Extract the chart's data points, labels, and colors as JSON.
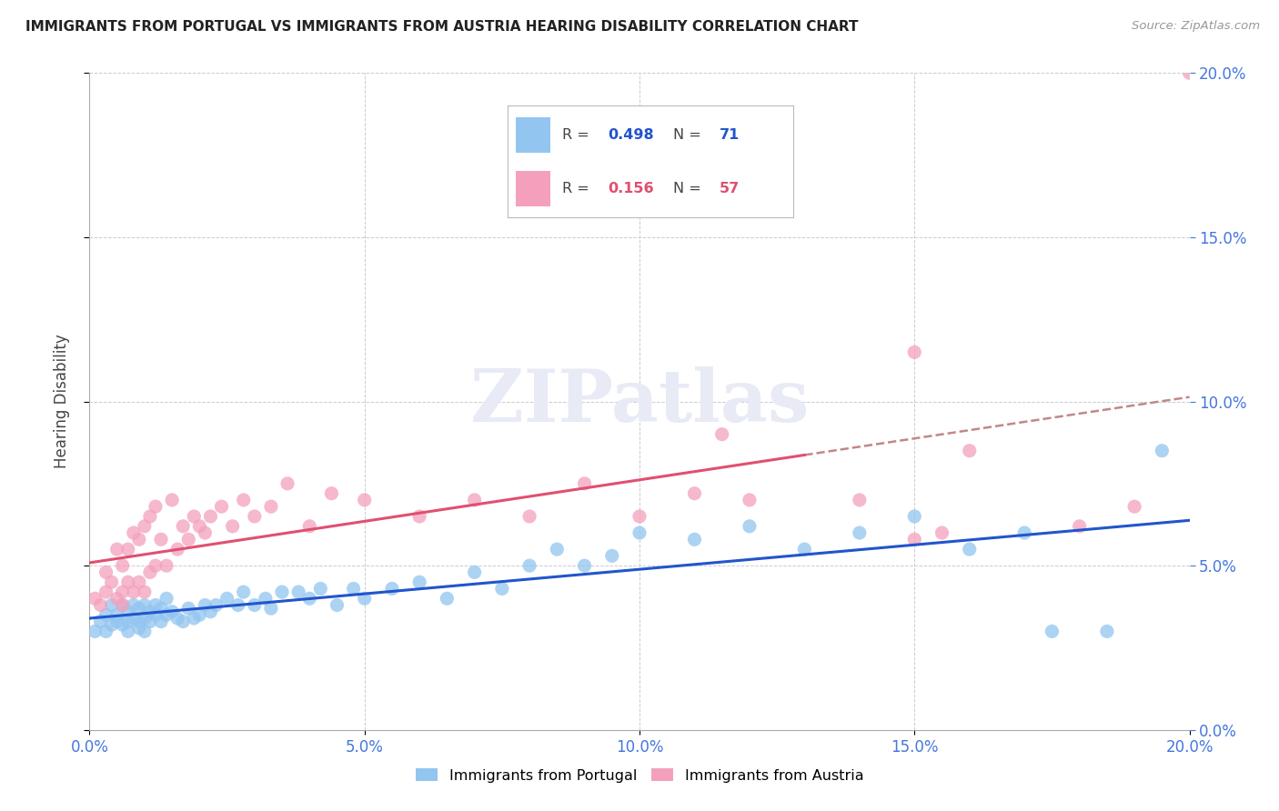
{
  "title": "IMMIGRANTS FROM PORTUGAL VS IMMIGRANTS FROM AUSTRIA HEARING DISABILITY CORRELATION CHART",
  "source": "Source: ZipAtlas.com",
  "ylabel": "Hearing Disability",
  "xlim": [
    0.0,
    0.2
  ],
  "ylim": [
    0.0,
    0.2
  ],
  "legend1_label": "Immigrants from Portugal",
  "legend2_label": "Immigrants from Austria",
  "R1": "0.498",
  "N1": "71",
  "R2": "0.156",
  "N2": "57",
  "color_portugal": "#92C5F0",
  "color_austria": "#F4A0BC",
  "trendline_portugal": "#2255CC",
  "trendline_austria": "#E05070",
  "trendline_dashed": "#C08888",
  "axis_blue": "#4477DD",
  "watermark_color": "#E8EAF5",
  "background_color": "#FFFFFF",
  "grid_color": "#CCCCCC",
  "portugal_x": [
    0.001,
    0.002,
    0.003,
    0.003,
    0.004,
    0.004,
    0.005,
    0.005,
    0.006,
    0.006,
    0.007,
    0.007,
    0.007,
    0.008,
    0.008,
    0.009,
    0.009,
    0.009,
    0.01,
    0.01,
    0.01,
    0.011,
    0.011,
    0.012,
    0.012,
    0.013,
    0.013,
    0.014,
    0.014,
    0.015,
    0.016,
    0.017,
    0.018,
    0.019,
    0.02,
    0.021,
    0.022,
    0.023,
    0.025,
    0.027,
    0.028,
    0.03,
    0.032,
    0.033,
    0.035,
    0.038,
    0.04,
    0.042,
    0.045,
    0.048,
    0.05,
    0.055,
    0.06,
    0.065,
    0.07,
    0.075,
    0.08,
    0.085,
    0.09,
    0.095,
    0.1,
    0.11,
    0.12,
    0.13,
    0.14,
    0.15,
    0.16,
    0.17,
    0.175,
    0.185,
    0.195
  ],
  "portugal_y": [
    0.03,
    0.033,
    0.035,
    0.03,
    0.038,
    0.032,
    0.035,
    0.033,
    0.038,
    0.032,
    0.036,
    0.033,
    0.03,
    0.038,
    0.034,
    0.037,
    0.033,
    0.031,
    0.038,
    0.034,
    0.03,
    0.036,
    0.033,
    0.038,
    0.035,
    0.037,
    0.033,
    0.04,
    0.035,
    0.036,
    0.034,
    0.033,
    0.037,
    0.034,
    0.035,
    0.038,
    0.036,
    0.038,
    0.04,
    0.038,
    0.042,
    0.038,
    0.04,
    0.037,
    0.042,
    0.042,
    0.04,
    0.043,
    0.038,
    0.043,
    0.04,
    0.043,
    0.045,
    0.04,
    0.048,
    0.043,
    0.05,
    0.055,
    0.05,
    0.053,
    0.06,
    0.058,
    0.062,
    0.055,
    0.06,
    0.065,
    0.055,
    0.06,
    0.03,
    0.03,
    0.085
  ],
  "austria_x": [
    0.001,
    0.002,
    0.003,
    0.003,
    0.004,
    0.005,
    0.005,
    0.006,
    0.006,
    0.006,
    0.007,
    0.007,
    0.008,
    0.008,
    0.009,
    0.009,
    0.01,
    0.01,
    0.011,
    0.011,
    0.012,
    0.012,
    0.013,
    0.014,
    0.015,
    0.016,
    0.017,
    0.018,
    0.019,
    0.02,
    0.021,
    0.022,
    0.024,
    0.026,
    0.028,
    0.03,
    0.033,
    0.036,
    0.04,
    0.044,
    0.05,
    0.06,
    0.07,
    0.08,
    0.09,
    0.1,
    0.11,
    0.115,
    0.12,
    0.14,
    0.15,
    0.15,
    0.155,
    0.16,
    0.18,
    0.19,
    0.2
  ],
  "austria_y": [
    0.04,
    0.038,
    0.042,
    0.048,
    0.045,
    0.04,
    0.055,
    0.042,
    0.038,
    0.05,
    0.045,
    0.055,
    0.042,
    0.06,
    0.045,
    0.058,
    0.042,
    0.062,
    0.048,
    0.065,
    0.05,
    0.068,
    0.058,
    0.05,
    0.07,
    0.055,
    0.062,
    0.058,
    0.065,
    0.062,
    0.06,
    0.065,
    0.068,
    0.062,
    0.07,
    0.065,
    0.068,
    0.075,
    0.062,
    0.072,
    0.07,
    0.065,
    0.07,
    0.065,
    0.075,
    0.065,
    0.072,
    0.09,
    0.07,
    0.07,
    0.058,
    0.115,
    0.06,
    0.085,
    0.062,
    0.068,
    0.2
  ]
}
